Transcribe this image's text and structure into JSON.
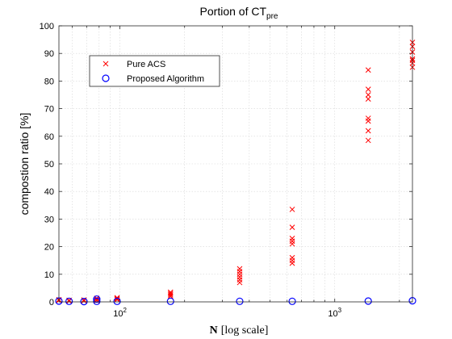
{
  "chart_data": {
    "type": "scatter",
    "title": "Portion of CT",
    "title_subscript": "pre",
    "xlabel_bold": "N",
    "xlabel_rest": "[log scale]",
    "ylabel": "compostion ratio [%]",
    "xscale": "log",
    "xlim": [
      52,
      2300
    ],
    "ylim": [
      0,
      100
    ],
    "yticks": [
      0,
      10,
      20,
      30,
      40,
      50,
      60,
      70,
      80,
      90,
      100
    ],
    "xticks": [
      {
        "value": 100,
        "base": "10",
        "exp": "2"
      },
      {
        "value": 1000,
        "base": "10",
        "exp": "3"
      }
    ],
    "grid": true,
    "legend_position": "top-left",
    "series": [
      {
        "name": "Pure ACS",
        "marker": "x",
        "color": "#ff0000",
        "points": [
          [
            52,
            0.5
          ],
          [
            52,
            0.8
          ],
          [
            58,
            0.3
          ],
          [
            58,
            0.6
          ],
          [
            68,
            0.4
          ],
          [
            68,
            0.7
          ],
          [
            78,
            0.5
          ],
          [
            78,
            1.0
          ],
          [
            78,
            1.3
          ],
          [
            97,
            0.8
          ],
          [
            97,
            1.2
          ],
          [
            97,
            1.5
          ],
          [
            172,
            2.0
          ],
          [
            172,
            2.5
          ],
          [
            172,
            3.0
          ],
          [
            172,
            3.5
          ],
          [
            361,
            7.0
          ],
          [
            361,
            8.0
          ],
          [
            361,
            9.0
          ],
          [
            361,
            10.0
          ],
          [
            361,
            11.0
          ],
          [
            361,
            12.0
          ],
          [
            634,
            14.0
          ],
          [
            634,
            15.0
          ],
          [
            634,
            16.0
          ],
          [
            634,
            21.0
          ],
          [
            634,
            22.0
          ],
          [
            634,
            23.0
          ],
          [
            634,
            27.0
          ],
          [
            634,
            33.5
          ],
          [
            1432,
            58.5
          ],
          [
            1432,
            62.0
          ],
          [
            1432,
            65.5
          ],
          [
            1432,
            66.5
          ],
          [
            1432,
            73.5
          ],
          [
            1432,
            75.0
          ],
          [
            1432,
            77.0
          ],
          [
            1432,
            84.0
          ],
          [
            2300,
            85.0
          ],
          [
            2300,
            86.5
          ],
          [
            2300,
            87.5
          ],
          [
            2300,
            88.0
          ],
          [
            2300,
            90.5
          ],
          [
            2300,
            92.5
          ],
          [
            2300,
            94.0
          ]
        ]
      },
      {
        "name": "Proposed Algorithm",
        "marker": "o",
        "color": "#0000ff",
        "points": [
          [
            52,
            0.3
          ],
          [
            58,
            0.2
          ],
          [
            68,
            0.1
          ],
          [
            78,
            0.2
          ],
          [
            78,
            1.0
          ],
          [
            97,
            0.2
          ],
          [
            172,
            0.2
          ],
          [
            361,
            0.2
          ],
          [
            634,
            0.2
          ],
          [
            1432,
            0.3
          ],
          [
            2300,
            0.4
          ]
        ]
      }
    ]
  }
}
